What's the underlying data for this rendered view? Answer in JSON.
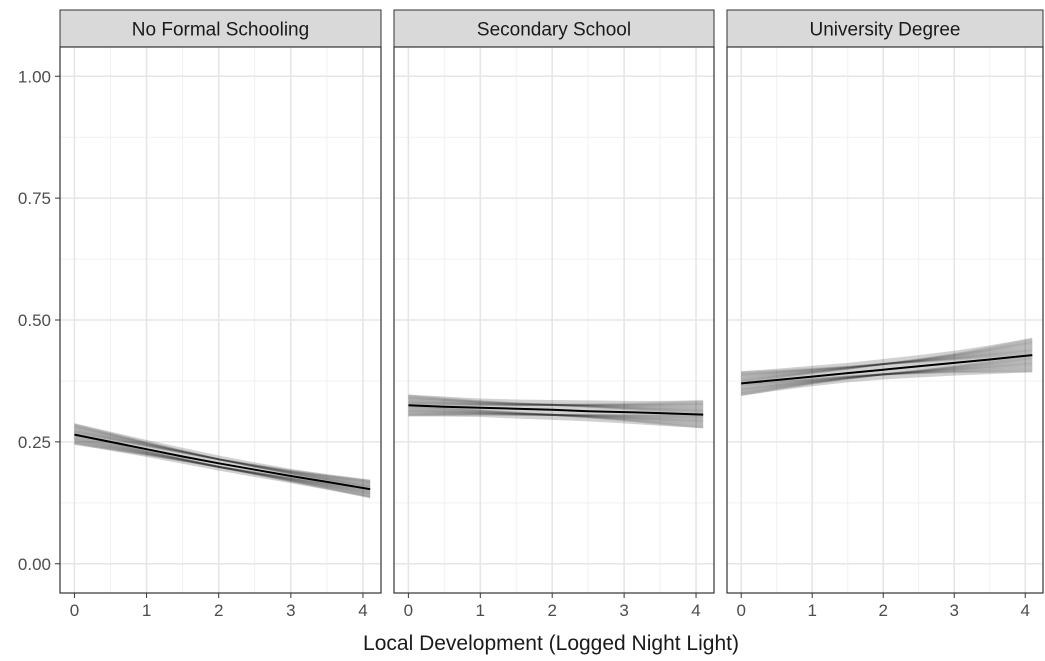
{
  "chart_data": {
    "type": "line",
    "xlabel": "Local Development (Logged Night Light)",
    "ylabel": "",
    "xlim": [
      -0.2,
      4.25
    ],
    "ylim": [
      -0.06,
      1.06
    ],
    "x_ticks": [
      0,
      1,
      2,
      3,
      4
    ],
    "x_tick_labels": [
      "0",
      "1",
      "2",
      "3",
      "4"
    ],
    "y_ticks": [
      0.0,
      0.25,
      0.5,
      0.75,
      1.0
    ],
    "y_tick_labels": [
      "0.00",
      "0.25",
      "0.50",
      "0.75",
      "1.00"
    ],
    "grid": true,
    "panels": [
      {
        "label": "No Formal Schooling",
        "x": [
          0,
          0.5,
          1,
          1.5,
          2,
          2.5,
          3,
          3.5,
          4.1
        ],
        "y": [
          0.265,
          0.25,
          0.235,
          0.22,
          0.206,
          0.193,
          0.18,
          0.168,
          0.153
        ],
        "band_lower": [
          0.245,
          0.232,
          0.219,
          0.205,
          0.191,
          0.178,
          0.165,
          0.152,
          0.135
        ],
        "band_upper": [
          0.288,
          0.271,
          0.254,
          0.238,
          0.222,
          0.208,
          0.195,
          0.184,
          0.172
        ]
      },
      {
        "label": "Secondary School",
        "x": [
          0,
          0.5,
          1,
          1.5,
          2,
          2.5,
          3,
          3.5,
          4.1
        ],
        "y": [
          0.325,
          0.322,
          0.32,
          0.318,
          0.316,
          0.313,
          0.311,
          0.309,
          0.306
        ],
        "band_lower": [
          0.303,
          0.302,
          0.301,
          0.298,
          0.295,
          0.292,
          0.288,
          0.283,
          0.278
        ],
        "band_upper": [
          0.347,
          0.343,
          0.339,
          0.337,
          0.336,
          0.335,
          0.334,
          0.334,
          0.335
        ]
      },
      {
        "label": "University Degree",
        "x": [
          0,
          0.5,
          1,
          1.5,
          2,
          2.5,
          3,
          3.5,
          4.1
        ],
        "y": [
          0.37,
          0.377,
          0.384,
          0.391,
          0.398,
          0.405,
          0.412,
          0.419,
          0.428
        ],
        "band_lower": [
          0.345,
          0.355,
          0.364,
          0.372,
          0.378,
          0.382,
          0.386,
          0.389,
          0.393
        ],
        "band_upper": [
          0.395,
          0.4,
          0.406,
          0.412,
          0.42,
          0.428,
          0.437,
          0.448,
          0.463
        ]
      }
    ]
  }
}
